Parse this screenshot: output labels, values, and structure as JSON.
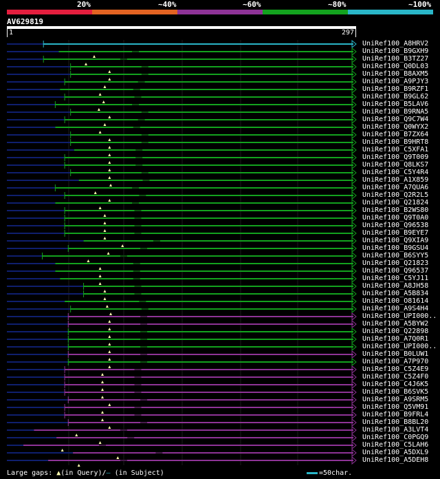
{
  "legend": {
    "labels": [
      "20%",
      "~40%",
      "~60%",
      "~80%",
      "~100%"
    ],
    "colors": [
      "#e41e3e",
      "#e36322",
      "#8e3396",
      "#13a21e",
      "#2ab6c8"
    ]
  },
  "query": {
    "id": "AV629819",
    "start_label": "1",
    "end_label": "297",
    "length": 297
  },
  "colors": {
    "green": "#13a21e",
    "magenta": "#8e3396",
    "cyan": "#2ab6c8",
    "dim_line": "#0f1f6e",
    "gap_marker": "#ffffb0",
    "grid": "#1c1c1c"
  },
  "hits": [
    {
      "name": "UniRef100_A8HRV2",
      "color": "cyan",
      "start": 32,
      "end": 297,
      "left_end": true,
      "gaps": []
    },
    {
      "name": "UniRef100_B9GXH9",
      "color": "green",
      "start": 45,
      "end": 297,
      "left_end": false,
      "gaps": [
        75,
        110
      ]
    },
    {
      "name": "UniRef100_B3TZ27",
      "color": "green",
      "start": 32,
      "end": 297,
      "left_end": true,
      "gaps": [
        68,
        100
      ]
    },
    {
      "name": "UniRef100_Q0DL03",
      "color": "green",
      "start": 55,
      "end": 297,
      "left_end": true,
      "gaps": [
        88,
        118
      ]
    },
    {
      "name": "UniRef100_B8AXM5",
      "color": "green",
      "start": 55,
      "end": 297,
      "left_end": true,
      "gaps": [
        88,
        118
      ]
    },
    {
      "name": "UniRef100_A9PJY3",
      "color": "green",
      "start": 50,
      "end": 297,
      "left_end": true,
      "gaps": [
        84,
        115
      ]
    },
    {
      "name": "UniRef100_B9RZF1",
      "color": "green",
      "start": 46,
      "end": 297,
      "left_end": false,
      "gaps": [
        80,
        111
      ]
    },
    {
      "name": "UniRef100_B9GL62",
      "color": "green",
      "start": 50,
      "end": 297,
      "left_end": true,
      "gaps": [
        83,
        112
      ]
    },
    {
      "name": "UniRef100_B5LAV6",
      "color": "green",
      "start": 42,
      "end": 297,
      "left_end": true,
      "gaps": [
        79,
        110
      ]
    },
    {
      "name": "UniRef100_B9RNA5",
      "color": "green",
      "start": 55,
      "end": 297,
      "left_end": true,
      "gaps": [
        88,
        118
      ]
    },
    {
      "name": "UniRef100_Q9C7W4",
      "color": "green",
      "start": 50,
      "end": 297,
      "left_end": true,
      "gaps": [
        84,
        115
      ]
    },
    {
      "name": "UniRef100_Q0WYX2",
      "color": "green",
      "start": 42,
      "end": 297,
      "left_end": false,
      "gaps": [
        80,
        111
      ]
    },
    {
      "name": "UniRef100_B7ZX64",
      "color": "green",
      "start": 55,
      "end": 297,
      "left_end": true,
      "gaps": [
        88,
        118
      ]
    },
    {
      "name": "UniRef100_B9HRT8",
      "color": "green",
      "start": 55,
      "end": 297,
      "left_end": true,
      "gaps": [
        88,
        118
      ]
    },
    {
      "name": "UniRef100_C5XFA1",
      "color": "green",
      "start": 58,
      "end": 297,
      "left_end": false,
      "gaps": [
        88,
        113
      ]
    },
    {
      "name": "UniRef100_Q9T009",
      "color": "green",
      "start": 50,
      "end": 297,
      "left_end": true,
      "gaps": [
        88,
        113
      ]
    },
    {
      "name": "UniRef100_Q8LKS7",
      "color": "green",
      "start": 50,
      "end": 297,
      "left_end": true,
      "gaps": [
        88,
        113
      ]
    },
    {
      "name": "UniRef100_C5Y4R4",
      "color": "green",
      "start": 55,
      "end": 297,
      "left_end": true,
      "gaps": [
        88,
        118
      ]
    },
    {
      "name": "UniRef100_A1X859",
      "color": "green",
      "start": 62,
      "end": 297,
      "left_end": false,
      "gaps": [
        89,
        119
      ]
    },
    {
      "name": "UniRef100_A7QUA6",
      "color": "green",
      "start": 42,
      "end": 297,
      "left_end": true,
      "gaps": [
        76,
        110
      ]
    },
    {
      "name": "UniRef100_Q2R2L5",
      "color": "green",
      "start": 50,
      "end": 297,
      "left_end": true,
      "gaps": [
        88,
        116
      ]
    },
    {
      "name": "UniRef100_Q21824",
      "color": "green",
      "start": 42,
      "end": 297,
      "left_end": false,
      "gaps": [
        80,
        110
      ]
    },
    {
      "name": "UniRef100_B2WS80",
      "color": "green",
      "start": 50,
      "end": 297,
      "left_end": true,
      "gaps": [
        84,
        112
      ]
    },
    {
      "name": "UniRef100_Q9T0A0",
      "color": "green",
      "start": 50,
      "end": 297,
      "left_end": true,
      "gaps": [
        84,
        112
      ]
    },
    {
      "name": "UniRef100_Q96538",
      "color": "green",
      "start": 50,
      "end": 297,
      "left_end": true,
      "gaps": [
        84,
        112
      ]
    },
    {
      "name": "UniRef100_B9EYE7",
      "color": "green",
      "start": 50,
      "end": 297,
      "left_end": true,
      "gaps": [
        84,
        112
      ]
    },
    {
      "name": "UniRef100_Q9XIA9",
      "color": "green",
      "start": 66,
      "end": 297,
      "left_end": false,
      "gaps": [
        99,
        128
      ]
    },
    {
      "name": "UniRef100_B9GSU4",
      "color": "green",
      "start": 53,
      "end": 297,
      "left_end": true,
      "gaps": [
        87,
        117
      ]
    },
    {
      "name": "UniRef100_B6SYY5",
      "color": "green",
      "start": 31,
      "end": 297,
      "left_end": true,
      "gaps": [
        70,
        100
      ]
    },
    {
      "name": "UniRef100_Q21823",
      "color": "green",
      "start": 42,
      "end": 297,
      "left_end": false,
      "gaps": [
        80,
        111
      ]
    },
    {
      "name": "UniRef100_Q96537",
      "color": "green",
      "start": 42,
      "end": 297,
      "left_end": false,
      "gaps": [
        80,
        111
      ]
    },
    {
      "name": "UniRef100_C5YJ11",
      "color": "green",
      "start": 46,
      "end": 297,
      "left_end": false,
      "gaps": [
        80,
        111
      ]
    },
    {
      "name": "UniRef100_A8JH58",
      "color": "green",
      "start": 66,
      "end": 297,
      "left_end": true,
      "gaps": [
        84,
        112
      ]
    },
    {
      "name": "UniRef100_A5B834",
      "color": "green",
      "start": 66,
      "end": 297,
      "left_end": true,
      "gaps": [
        84,
        112
      ]
    },
    {
      "name": "UniRef100_O81614",
      "color": "green",
      "start": 50,
      "end": 297,
      "left_end": false,
      "gaps": [
        86,
        116
      ]
    },
    {
      "name": "UniRef100_A9S4H4",
      "color": "green",
      "start": 55,
      "end": 297,
      "left_end": true,
      "gaps": [
        89,
        118
      ]
    },
    {
      "name": "UniRef100_UPI000..",
      "color": "magenta",
      "start": 53,
      "end": 297,
      "left_end": true,
      "gaps": [
        88,
        117
      ]
    },
    {
      "name": "UniRef100_A5BYW2",
      "color": "magenta",
      "start": 53,
      "end": 297,
      "left_end": true,
      "gaps": [
        88,
        117
      ]
    },
    {
      "name": "UniRef100_Q22898",
      "color": "green",
      "start": 53,
      "end": 297,
      "left_end": true,
      "gaps": [
        88,
        117
      ]
    },
    {
      "name": "UniRef100_A7Q0R1",
      "color": "green",
      "start": 53,
      "end": 297,
      "left_end": true,
      "gaps": [
        88,
        117
      ]
    },
    {
      "name": "UniRef100_UPI000..",
      "color": "green",
      "start": 53,
      "end": 297,
      "left_end": true,
      "gaps": [
        88,
        117
      ]
    },
    {
      "name": "UniRef100_B0LUW1",
      "color": "magenta",
      "start": 53,
      "end": 297,
      "left_end": true,
      "gaps": [
        88,
        117
      ]
    },
    {
      "name": "UniRef100_A7P970",
      "color": "green",
      "start": 53,
      "end": 297,
      "left_end": true,
      "gaps": [
        88,
        117
      ]
    },
    {
      "name": "UniRef100_C5Z4E9",
      "color": "magenta",
      "start": 50,
      "end": 297,
      "left_end": true,
      "gaps": [
        82,
        112
      ]
    },
    {
      "name": "UniRef100_C5Z4F0",
      "color": "magenta",
      "start": 50,
      "end": 297,
      "left_end": true,
      "gaps": [
        82,
        112
      ]
    },
    {
      "name": "UniRef100_C4J6K5",
      "color": "magenta",
      "start": 50,
      "end": 297,
      "left_end": true,
      "gaps": [
        82,
        112
      ]
    },
    {
      "name": "UniRef100_B6SVK5",
      "color": "magenta",
      "start": 50,
      "end": 297,
      "left_end": true,
      "gaps": [
        82,
        112
      ]
    },
    {
      "name": "UniRef100_A9SRM5",
      "color": "magenta",
      "start": 53,
      "end": 297,
      "left_end": true,
      "gaps": [
        88,
        117
      ]
    },
    {
      "name": "UniRef100_Q5VM91",
      "color": "magenta",
      "start": 50,
      "end": 297,
      "left_end": true,
      "gaps": [
        82,
        112
      ]
    },
    {
      "name": "UniRef100_B9FRL4",
      "color": "magenta",
      "start": 50,
      "end": 297,
      "left_end": true,
      "gaps": [
        82,
        112
      ]
    },
    {
      "name": "UniRef100_B8BL20",
      "color": "magenta",
      "start": 53,
      "end": 297,
      "left_end": true,
      "gaps": [
        88,
        117
      ]
    },
    {
      "name": "UniRef100_A3LVT4",
      "color": "magenta",
      "start": 24,
      "end": 297,
      "left_end": false,
      "gaps": [
        60,
        100
      ]
    },
    {
      "name": "UniRef100_C0PGQ9",
      "color": "magenta",
      "start": 43,
      "end": 297,
      "left_end": false,
      "gaps": [
        80,
        106
      ]
    },
    {
      "name": "UniRef100_C5LAH6",
      "color": "magenta",
      "start": 15,
      "end": 297,
      "left_end": false,
      "gaps": [
        48,
        82
      ]
    },
    {
      "name": "UniRef100_A5DXL9",
      "color": "magenta",
      "start": 57,
      "end": 297,
      "left_end": false,
      "gaps": [
        95,
        130
      ]
    },
    {
      "name": "UniRef100_A5DEH8",
      "color": "magenta",
      "start": 36,
      "end": 297,
      "left_end": false,
      "gaps": [
        62,
        100
      ]
    }
  ],
  "footer": {
    "prefix": "Large gaps: ",
    "query_marker": "▲",
    "query_text": "(in Query)/",
    "subject_marker": "–",
    "subject_text": " (in Subject)",
    "scale_text": "=50char."
  }
}
